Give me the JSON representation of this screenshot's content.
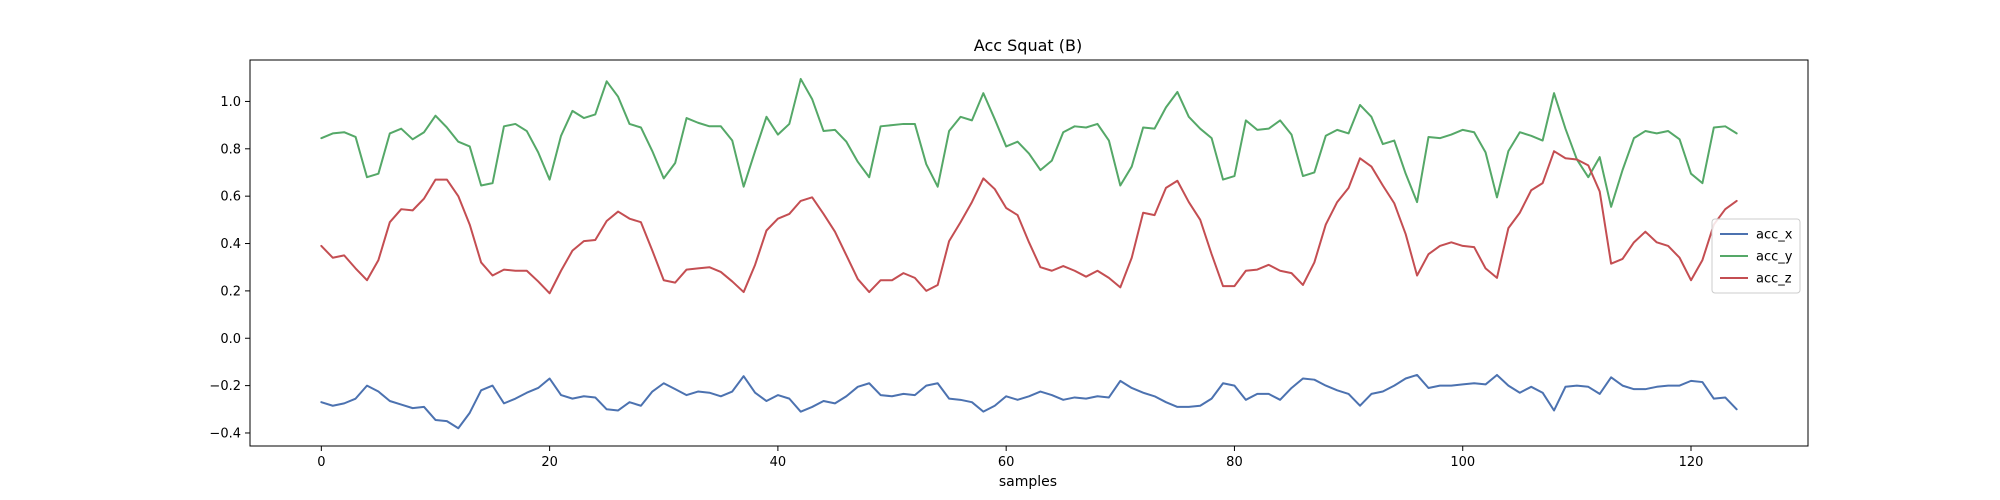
{
  "chart_data": {
    "type": "line",
    "title": "Acc Squat (B)",
    "xlabel": "samples",
    "ylabel": "",
    "xlim": [
      -6.25,
      130.25
    ],
    "ylim": [
      -0.455,
      1.175
    ],
    "xticks": [
      0,
      20,
      40,
      60,
      80,
      100,
      120
    ],
    "yticks": [
      -0.4,
      -0.2,
      0.0,
      0.2,
      0.4,
      0.6,
      0.8,
      1.0
    ],
    "ytick_labels": [
      "−0.4",
      "−0.2",
      "0.0",
      "0.2",
      "0.4",
      "0.6",
      "0.8",
      "1.0"
    ],
    "grid": false,
    "legend_position": "center-right",
    "series": [
      {
        "name": "acc_x",
        "color": "#4c72b0",
        "values": [
          -0.27,
          -0.285,
          -0.275,
          -0.255,
          -0.2,
          -0.225,
          -0.265,
          -0.28,
          -0.295,
          -0.29,
          -0.345,
          -0.35,
          -0.38,
          -0.315,
          -0.22,
          -0.2,
          -0.275,
          -0.255,
          -0.23,
          -0.21,
          -0.17,
          -0.24,
          -0.255,
          -0.245,
          -0.25,
          -0.3,
          -0.305,
          -0.27,
          -0.285,
          -0.225,
          -0.19,
          -0.215,
          -0.24,
          -0.225,
          -0.23,
          -0.245,
          -0.225,
          -0.16,
          -0.23,
          -0.265,
          -0.24,
          -0.255,
          -0.31,
          -0.29,
          -0.265,
          -0.275,
          -0.245,
          -0.205,
          -0.19,
          -0.24,
          -0.245,
          -0.235,
          -0.24,
          -0.2,
          -0.19,
          -0.255,
          -0.26,
          -0.27,
          -0.31,
          -0.285,
          -0.245,
          -0.26,
          -0.245,
          -0.225,
          -0.24,
          -0.26,
          -0.25,
          -0.255,
          -0.245,
          -0.25,
          -0.18,
          -0.21,
          -0.23,
          -0.245,
          -0.27,
          -0.29,
          -0.29,
          -0.285,
          -0.255,
          -0.19,
          -0.2,
          -0.26,
          -0.235,
          -0.235,
          -0.26,
          -0.21,
          -0.17,
          -0.175,
          -0.2,
          -0.22,
          -0.235,
          -0.285,
          -0.235,
          -0.225,
          -0.2,
          -0.17,
          -0.155,
          -0.21,
          -0.2,
          -0.2,
          -0.195,
          -0.19,
          -0.195,
          -0.155,
          -0.2,
          -0.23,
          -0.205,
          -0.23,
          -0.305,
          -0.205,
          -0.2,
          -0.205,
          -0.235,
          -0.165,
          -0.2,
          -0.215,
          -0.215,
          -0.205,
          -0.2,
          -0.2,
          -0.18,
          -0.185,
          -0.255,
          -0.25,
          -0.3
        ]
      },
      {
        "name": "acc_y",
        "color": "#55a868",
        "values": [
          0.845,
          0.865,
          0.87,
          0.85,
          0.68,
          0.695,
          0.865,
          0.885,
          0.84,
          0.87,
          0.94,
          0.89,
          0.83,
          0.81,
          0.645,
          0.655,
          0.895,
          0.905,
          0.875,
          0.785,
          0.67,
          0.855,
          0.96,
          0.93,
          0.945,
          1.085,
          1.02,
          0.905,
          0.89,
          0.79,
          0.675,
          0.74,
          0.93,
          0.91,
          0.895,
          0.895,
          0.835,
          0.64,
          0.79,
          0.935,
          0.86,
          0.905,
          1.095,
          1.01,
          0.875,
          0.88,
          0.83,
          0.745,
          0.68,
          0.895,
          0.9,
          0.905,
          0.905,
          0.735,
          0.64,
          0.875,
          0.935,
          0.92,
          1.035,
          0.925,
          0.81,
          0.83,
          0.78,
          0.71,
          0.75,
          0.87,
          0.895,
          0.89,
          0.905,
          0.835,
          0.645,
          0.725,
          0.89,
          0.885,
          0.975,
          1.04,
          0.935,
          0.885,
          0.845,
          0.67,
          0.685,
          0.92,
          0.88,
          0.885,
          0.92,
          0.86,
          0.685,
          0.7,
          0.855,
          0.88,
          0.865,
          0.985,
          0.935,
          0.82,
          0.835,
          0.695,
          0.575,
          0.85,
          0.845,
          0.86,
          0.88,
          0.87,
          0.785,
          0.595,
          0.79,
          0.87,
          0.855,
          0.835,
          1.035,
          0.885,
          0.755,
          0.68,
          0.765,
          0.555,
          0.71,
          0.845,
          0.875,
          0.865,
          0.875,
          0.84,
          0.695,
          0.655,
          0.89,
          0.895,
          0.865
        ]
      },
      {
        "name": "acc_z",
        "color": "#c44e52",
        "values": [
          0.39,
          0.34,
          0.35,
          0.295,
          0.245,
          0.33,
          0.49,
          0.545,
          0.54,
          0.59,
          0.67,
          0.67,
          0.6,
          0.48,
          0.32,
          0.265,
          0.29,
          0.285,
          0.285,
          0.24,
          0.19,
          0.285,
          0.37,
          0.41,
          0.415,
          0.495,
          0.535,
          0.505,
          0.49,
          0.37,
          0.245,
          0.235,
          0.29,
          0.295,
          0.3,
          0.28,
          0.24,
          0.195,
          0.31,
          0.455,
          0.505,
          0.525,
          0.58,
          0.595,
          0.525,
          0.45,
          0.35,
          0.25,
          0.195,
          0.245,
          0.245,
          0.275,
          0.255,
          0.2,
          0.225,
          0.41,
          0.49,
          0.575,
          0.675,
          0.63,
          0.55,
          0.52,
          0.405,
          0.3,
          0.285,
          0.305,
          0.285,
          0.26,
          0.285,
          0.255,
          0.215,
          0.34,
          0.53,
          0.52,
          0.635,
          0.665,
          0.575,
          0.5,
          0.355,
          0.22,
          0.22,
          0.285,
          0.29,
          0.31,
          0.285,
          0.275,
          0.225,
          0.32,
          0.48,
          0.575,
          0.635,
          0.76,
          0.725,
          0.645,
          0.57,
          0.44,
          0.265,
          0.355,
          0.39,
          0.405,
          0.39,
          0.385,
          0.295,
          0.255,
          0.465,
          0.53,
          0.625,
          0.655,
          0.79,
          0.76,
          0.755,
          0.73,
          0.62,
          0.315,
          0.335,
          0.405,
          0.45,
          0.405,
          0.39,
          0.34,
          0.245,
          0.33,
          0.48,
          0.545,
          0.58
        ]
      }
    ]
  }
}
